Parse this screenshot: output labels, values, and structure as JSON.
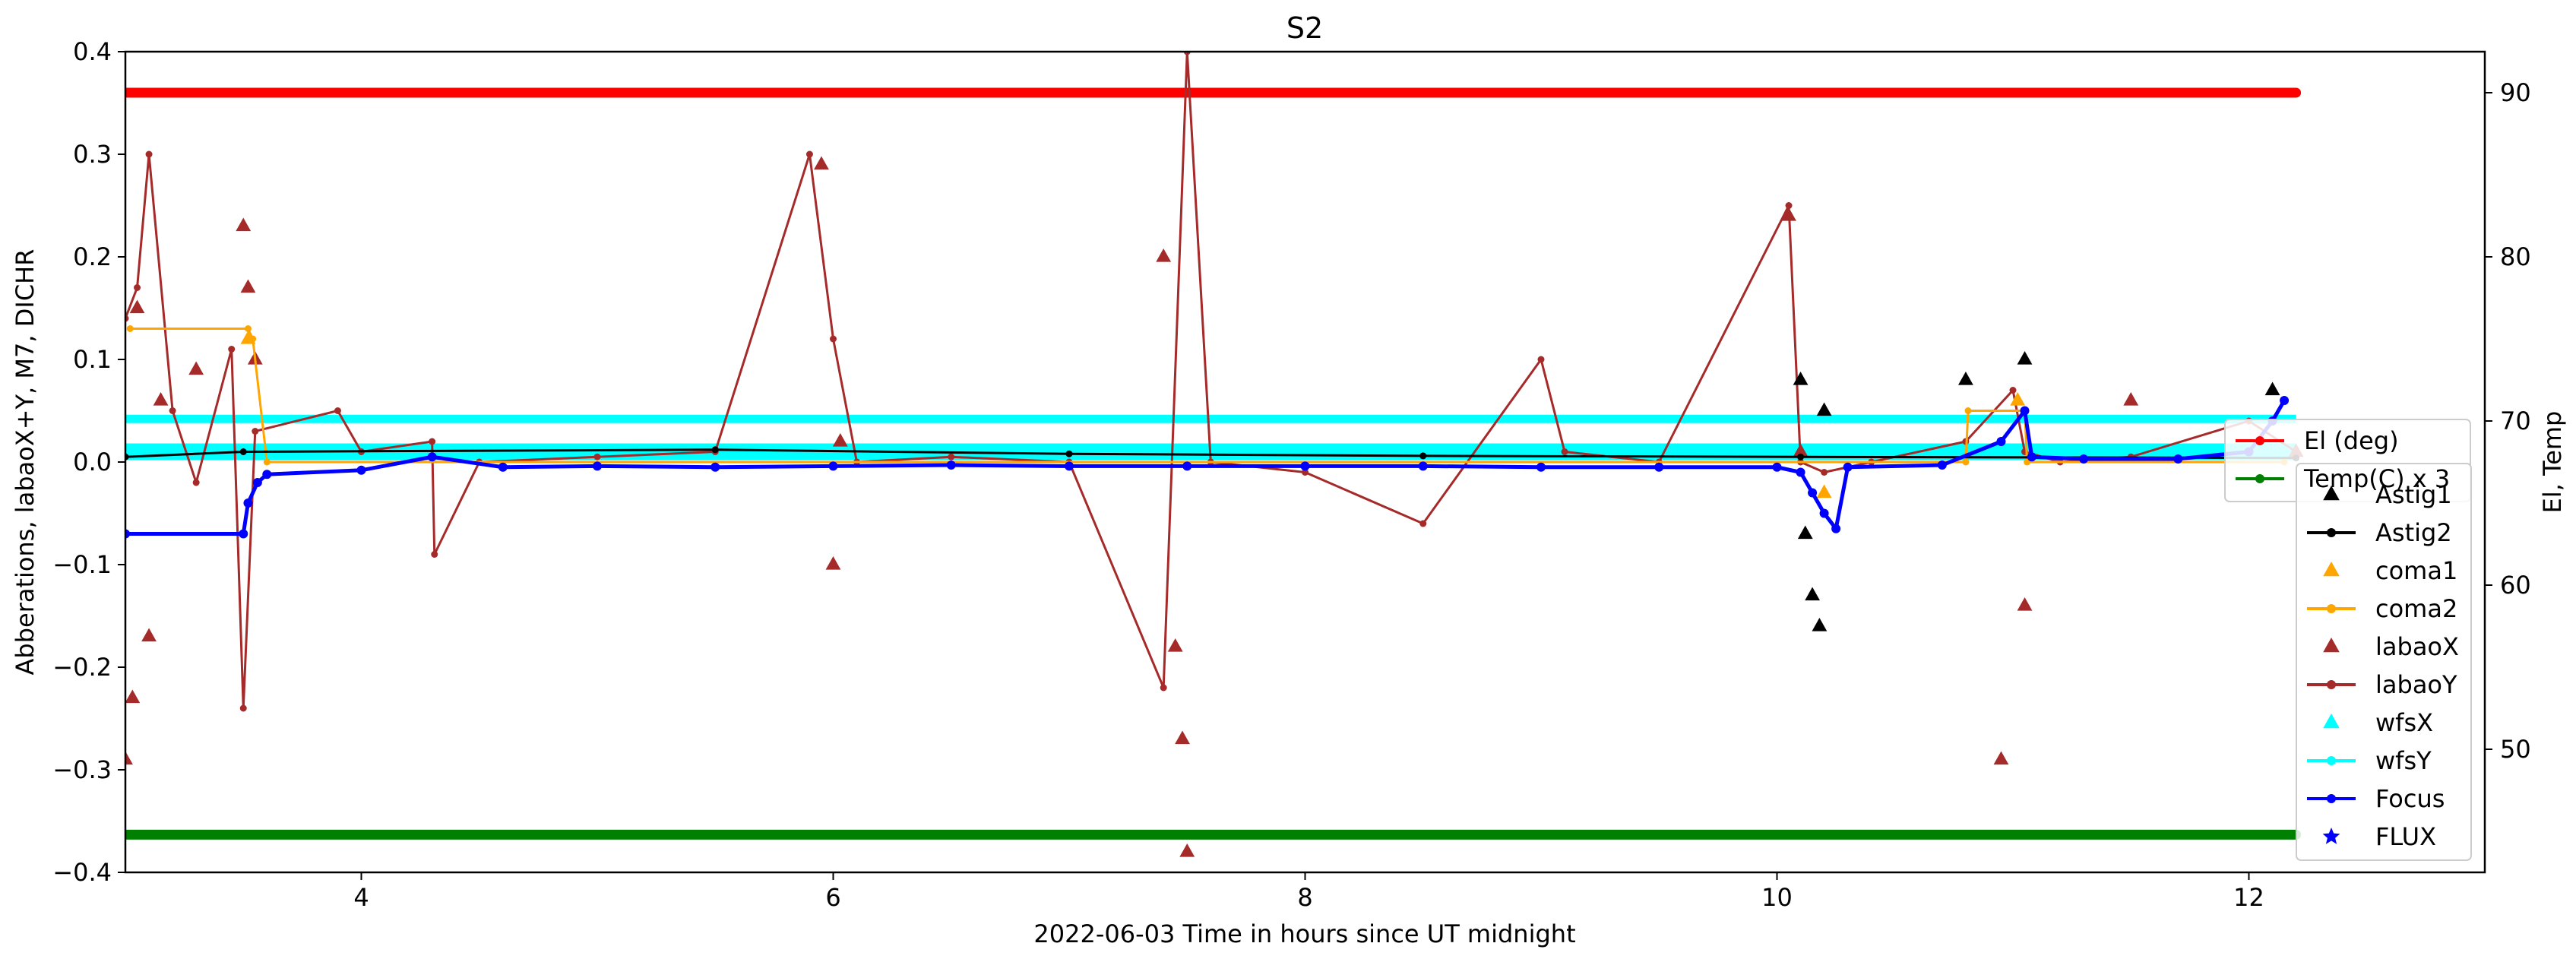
{
  "chart_data": {
    "type": "line",
    "title": "S2",
    "xlabel": "2022-06-03  Time in hours since UT midnight",
    "ylabel": "Abberations, labaoX+Y, M7, DICHR",
    "y2label": "El, Temp",
    "xlim": [
      3.0,
      13.0
    ],
    "ylim": [
      -0.4,
      0.4
    ],
    "y2lim": [
      42.5,
      92.5
    ],
    "xticks": [
      "4",
      "6",
      "8",
      "10",
      "12"
    ],
    "yticks": [
      "−0.4",
      "−0.3",
      "−0.2",
      "−0.1",
      "0.0",
      "0.1",
      "0.2",
      "0.3",
      "0.4"
    ],
    "y2ticks": [
      "50",
      "60",
      "70",
      "80",
      "90"
    ],
    "legend_position": "right",
    "legend": [
      {
        "name": "El (deg)",
        "color": "#ff0000",
        "marker": "dot-line"
      },
      {
        "name": "Temp(C) x 3",
        "color": "#008000",
        "marker": "dot-line"
      },
      {
        "name": "Astig1",
        "color": "#000000",
        "marker": "triangle"
      },
      {
        "name": "Astig2",
        "color": "#000000",
        "marker": "dot-line"
      },
      {
        "name": "coma1",
        "color": "#ffa500",
        "marker": "triangle"
      },
      {
        "name": "coma2",
        "color": "#ffa500",
        "marker": "dot-line"
      },
      {
        "name": "labaoX",
        "color": "#a52a2a",
        "marker": "triangle"
      },
      {
        "name": "labaoY",
        "color": "#a52a2a",
        "marker": "dot-line"
      },
      {
        "name": "wfsX",
        "color": "#00ffff",
        "marker": "triangle"
      },
      {
        "name": "wfsY",
        "color": "#00ffff",
        "marker": "dot-line"
      },
      {
        "name": "Focus",
        "color": "#0000ff",
        "marker": "dot-line"
      },
      {
        "name": "FLUX",
        "color": "#0000ff",
        "marker": "star"
      }
    ],
    "series": [
      {
        "name": "El (deg)",
        "axis": "right",
        "color": "#ff0000",
        "x": [
          3.0,
          12.2
        ],
        "y": [
          90.0,
          90.0
        ]
      },
      {
        "name": "Temp(C) x 3",
        "axis": "right",
        "color": "#008000",
        "x": [
          3.0,
          12.2
        ],
        "y": [
          44.8,
          44.8
        ]
      },
      {
        "name": "wfsY",
        "axis": "left",
        "color": "#00ffff",
        "x": [
          3.0,
          12.2
        ],
        "y": [
          0.042,
          0.042
        ]
      },
      {
        "name": "wfsX",
        "axis": "left",
        "color": "#00ffff",
        "x": [
          3.0,
          12.2
        ],
        "y": [
          0.01,
          0.01
        ]
      },
      {
        "name": "Focus",
        "axis": "left",
        "color": "#0000ff",
        "x": [
          3.0,
          3.5,
          3.52,
          3.56,
          3.6,
          4.0,
          4.3,
          4.6,
          5.0,
          5.5,
          6.0,
          6.5,
          7.0,
          7.5,
          8.0,
          8.5,
          9.0,
          9.5,
          10.0,
          10.1,
          10.15,
          10.2,
          10.25,
          10.3,
          10.7,
          10.95,
          11.05,
          11.08,
          11.3,
          11.7,
          12.0,
          12.1,
          12.15
        ],
        "y": [
          -0.07,
          -0.07,
          -0.04,
          -0.02,
          -0.012,
          -0.008,
          0.005,
          -0.005,
          -0.004,
          -0.005,
          -0.004,
          -0.003,
          -0.004,
          -0.004,
          -0.004,
          -0.004,
          -0.005,
          -0.005,
          -0.005,
          -0.01,
          -0.03,
          -0.05,
          -0.065,
          -0.005,
          -0.003,
          0.02,
          0.05,
          0.005,
          0.003,
          0.003,
          0.01,
          0.04,
          0.06
        ]
      },
      {
        "name": "coma2",
        "axis": "left",
        "color": "#ffa500",
        "x": [
          3.02,
          3.52,
          3.54,
          3.6,
          10.8,
          10.81,
          11.05,
          11.06,
          12.15
        ],
        "y": [
          0.13,
          0.13,
          0.12,
          0.0,
          0.0,
          0.05,
          0.05,
          0.0,
          0.0
        ]
      },
      {
        "name": "Astig2",
        "axis": "left",
        "color": "#000000",
        "x": [
          3.0,
          3.5,
          5.5,
          7.0,
          8.5,
          10.1,
          12.2
        ],
        "y": [
          0.005,
          0.01,
          0.012,
          0.008,
          0.006,
          0.005,
          0.004
        ]
      },
      {
        "name": "labaoY",
        "axis": "left",
        "color": "#a52a2a",
        "x": [
          3.0,
          3.05,
          3.1,
          3.2,
          3.3,
          3.45,
          3.5,
          3.55,
          3.9,
          4.0,
          4.3,
          4.31,
          4.5,
          5.0,
          5.5,
          5.9,
          6.0,
          6.1,
          6.5,
          7.0,
          7.4,
          7.5,
          7.6,
          8.0,
          8.5,
          9.0,
          9.1,
          9.5,
          10.05,
          10.1,
          10.2,
          10.4,
          10.8,
          11.0,
          11.05,
          11.2,
          11.5,
          12.0,
          12.2
        ],
        "y": [
          0.14,
          0.17,
          0.3,
          0.05,
          -0.02,
          0.11,
          -0.24,
          0.03,
          0.05,
          0.01,
          0.02,
          -0.09,
          0.0,
          0.005,
          0.01,
          0.3,
          0.12,
          0.0,
          0.005,
          0.0,
          -0.22,
          0.4,
          0.0,
          -0.01,
          -0.06,
          0.1,
          0.01,
          0.0,
          0.25,
          0.0,
          -0.01,
          0.0,
          0.02,
          0.07,
          0.01,
          0.0,
          0.005,
          0.04,
          0.01
        ]
      },
      {
        "name": "labaoX",
        "axis": "left",
        "color": "#a52a2a",
        "marker": "triangle",
        "x": [
          3.0,
          3.03,
          3.05,
          3.1,
          3.15,
          3.3,
          3.5,
          3.52,
          3.55,
          5.95,
          6.0,
          6.03,
          7.4,
          7.45,
          7.48,
          7.5,
          10.05,
          10.1,
          10.95,
          11.05,
          11.5,
          12.2
        ],
        "y": [
          -0.29,
          -0.23,
          0.15,
          -0.17,
          0.06,
          0.09,
          0.23,
          0.17,
          0.1,
          0.29,
          -0.1,
          0.02,
          0.2,
          -0.18,
          -0.27,
          -0.38,
          0.24,
          0.01,
          -0.29,
          -0.14,
          0.06,
          0.01
        ]
      },
      {
        "name": "Astig1",
        "axis": "left",
        "color": "#000000",
        "marker": "triangle",
        "x": [
          10.1,
          10.12,
          10.15,
          10.18,
          10.2,
          10.8,
          11.05,
          12.1
        ],
        "y": [
          0.08,
          -0.07,
          -0.13,
          -0.16,
          0.05,
          0.08,
          0.1,
          0.07
        ]
      },
      {
        "name": "coma1",
        "axis": "left",
        "color": "#ffa500",
        "marker": "triangle",
        "x": [
          3.52,
          10.2,
          11.02
        ],
        "y": [
          0.12,
          -0.03,
          0.06
        ]
      }
    ]
  }
}
